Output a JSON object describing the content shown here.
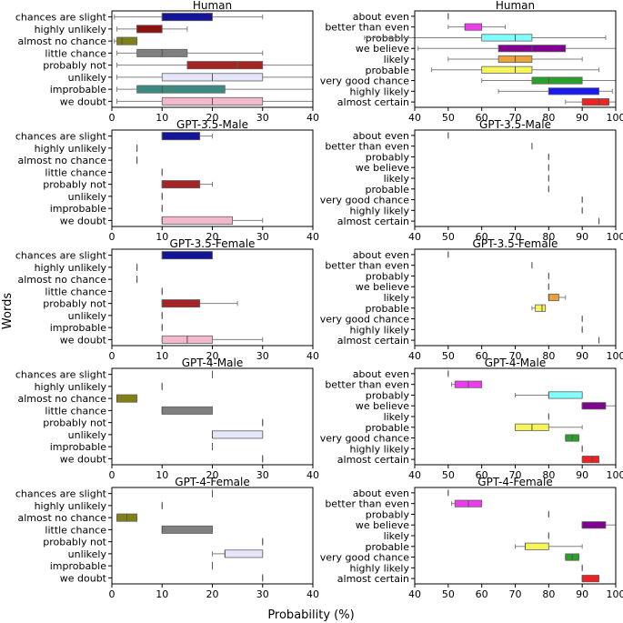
{
  "figure": {
    "ylabel": "Words",
    "xlabel": "Probability (%)"
  },
  "chart_data": [
    {
      "type": "box",
      "title": "Human",
      "xlim": [
        0,
        40
      ],
      "xticks": [
        0,
        10,
        20,
        30,
        40
      ],
      "categories": [
        "chances are slight",
        "highly unlikely",
        "almost no chance",
        "little chance",
        "probably not",
        "unlikely",
        "improbable",
        "we doubt"
      ],
      "boxes": [
        {
          "wmin": 0.5,
          "q1": 10,
          "median": 10,
          "q3": 20,
          "wmax": 30,
          "color": "#14149a"
        },
        {
          "wmin": 1,
          "q1": 5,
          "median": 5,
          "q3": 10,
          "wmax": 15,
          "color": "#8b1111"
        },
        {
          "wmin": 0.5,
          "q1": 1,
          "median": 2,
          "q3": 5,
          "wmax": 5,
          "color": "#808017"
        },
        {
          "wmin": 1,
          "q1": 5,
          "median": 10,
          "q3": 15,
          "wmax": 30,
          "color": "#7f7f7f"
        },
        {
          "wmin": 1,
          "q1": 15,
          "median": 25,
          "q3": 30,
          "wmax": 40,
          "color": "#a52525"
        },
        {
          "wmin": 1,
          "q1": 10,
          "median": 20,
          "q3": 30,
          "wmax": 40,
          "color": "#e6e6fa"
        },
        {
          "wmin": 1,
          "q1": 5,
          "median": 10,
          "q3": 22.5,
          "wmax": 40,
          "color": "#3d8b80"
        },
        {
          "wmin": 1,
          "q1": 10,
          "median": 20,
          "q3": 30,
          "wmax": 40,
          "color": "#f4b8cc"
        }
      ]
    },
    {
      "type": "box",
      "title": "Human",
      "xlim": [
        40,
        100
      ],
      "xticks": [
        40,
        50,
        60,
        70,
        80,
        90,
        100
      ],
      "categories": [
        "about even",
        "better than even",
        "probably",
        "we believe",
        "likely",
        "probable",
        "very good chance",
        "highly likely",
        "almost certain"
      ],
      "boxes": [
        {
          "wmin": 50,
          "q1": 50,
          "median": 50,
          "q3": 50,
          "wmax": 50,
          "color": "#555555"
        },
        {
          "wmin": 50,
          "q1": 55,
          "median": 55,
          "q3": 60,
          "wmax": 67,
          "color": "#ee3bee"
        },
        {
          "wmin": 25,
          "q1": 60,
          "median": 70,
          "q3": 75,
          "wmax": 97,
          "color": "#7fffff"
        },
        {
          "wmin": 41,
          "q1": 65,
          "median": 75,
          "q3": 85,
          "wmax": 100,
          "color": "#800090"
        },
        {
          "wmin": 50,
          "q1": 65,
          "median": 70,
          "q3": 75,
          "wmax": 90,
          "color": "#e8a23c"
        },
        {
          "wmin": 45,
          "q1": 60,
          "median": 70,
          "q3": 75,
          "wmax": 95,
          "color": "#f5f55a"
        },
        {
          "wmin": 60,
          "q1": 75,
          "median": 80,
          "q3": 90,
          "wmax": 100,
          "color": "#2aa02a"
        },
        {
          "wmin": 65,
          "q1": 80,
          "median": 80,
          "q3": 95,
          "wmax": 99,
          "color": "#1818f0"
        },
        {
          "wmin": 85,
          "q1": 90,
          "median": 95,
          "q3": 98,
          "wmax": 100,
          "color": "#ee2222"
        }
      ]
    },
    {
      "type": "box",
      "title": "GPT-3.5-Male",
      "xlim": [
        0,
        40
      ],
      "xticks": [
        0,
        10,
        20,
        30,
        40
      ],
      "categories": [
        "chances are slight",
        "highly unlikely",
        "almost no chance",
        "little chance",
        "probably not",
        "unlikely",
        "improbable",
        "we doubt"
      ],
      "boxes": [
        {
          "wmin": 10,
          "q1": 10,
          "median": 10,
          "q3": 17.5,
          "wmax": 20,
          "color": "#14149a"
        },
        {
          "wmin": 5,
          "q1": 5,
          "median": 5,
          "q3": 5,
          "wmax": 5,
          "color": "#8b1111"
        },
        {
          "wmin": 5,
          "q1": 5,
          "median": 5,
          "q3": 5,
          "wmax": 5,
          "color": "#808017"
        },
        {
          "wmin": 10,
          "q1": 10,
          "median": 10,
          "q3": 10,
          "wmax": 10,
          "color": "#7f7f7f"
        },
        {
          "wmin": 10,
          "q1": 10,
          "median": 10,
          "q3": 17.5,
          "wmax": 20,
          "color": "#a52525"
        },
        {
          "wmin": 10,
          "q1": 10,
          "median": 10,
          "q3": 10,
          "wmax": 10,
          "color": "#e6e6fa"
        },
        {
          "wmin": 10,
          "q1": 10,
          "median": 10,
          "q3": 10,
          "wmax": 10,
          "color": "#3d8b80"
        },
        {
          "wmin": 10,
          "q1": 10,
          "median": 10,
          "q3": 24,
          "wmax": 30,
          "color": "#f4b8cc"
        }
      ]
    },
    {
      "type": "box",
      "title": "GPT-3.5-Male",
      "xlim": [
        40,
        100
      ],
      "xticks": [
        40,
        50,
        60,
        70,
        80,
        90,
        100
      ],
      "categories": [
        "about even",
        "better than even",
        "probably",
        "we believe",
        "likely",
        "probable",
        "very good chance",
        "highly likely",
        "almost certain"
      ],
      "boxes": [
        {
          "wmin": 50,
          "q1": 50,
          "median": 50,
          "q3": 50,
          "wmax": 50,
          "color": "#555555"
        },
        {
          "wmin": 75,
          "q1": 75,
          "median": 75,
          "q3": 75,
          "wmax": 75,
          "color": "#ee3bee"
        },
        {
          "wmin": 80,
          "q1": 80,
          "median": 80,
          "q3": 80,
          "wmax": 80,
          "color": "#7fffff"
        },
        {
          "wmin": 80,
          "q1": 80,
          "median": 80,
          "q3": 80,
          "wmax": 80,
          "color": "#800090"
        },
        {
          "wmin": 80,
          "q1": 80,
          "median": 80,
          "q3": 80,
          "wmax": 80,
          "color": "#e8a23c"
        },
        {
          "wmin": 80,
          "q1": 80,
          "median": 80,
          "q3": 80,
          "wmax": 80,
          "color": "#f5f55a"
        },
        {
          "wmin": 90,
          "q1": 90,
          "median": 90,
          "q3": 90,
          "wmax": 90,
          "color": "#2aa02a"
        },
        {
          "wmin": 90,
          "q1": 90,
          "median": 90,
          "q3": 90,
          "wmax": 90,
          "color": "#1818f0"
        },
        {
          "wmin": 95,
          "q1": 95,
          "median": 95,
          "q3": 95,
          "wmax": 95,
          "color": "#ee2222"
        }
      ]
    },
    {
      "type": "box",
      "title": "GPT-3.5-Female",
      "xlim": [
        0,
        40
      ],
      "xticks": [
        0,
        10,
        20,
        30,
        40
      ],
      "categories": [
        "chances are slight",
        "highly unlikely",
        "almost no chance",
        "little chance",
        "probably not",
        "unlikely",
        "improbable",
        "we doubt"
      ],
      "boxes": [
        {
          "wmin": 10,
          "q1": 10,
          "median": 10,
          "q3": 20,
          "wmax": 20,
          "color": "#14149a"
        },
        {
          "wmin": 5,
          "q1": 5,
          "median": 5,
          "q3": 5,
          "wmax": 5,
          "color": "#8b1111"
        },
        {
          "wmin": 5,
          "q1": 5,
          "median": 5,
          "q3": 5,
          "wmax": 5,
          "color": "#808017"
        },
        {
          "wmin": 10,
          "q1": 10,
          "median": 10,
          "q3": 10,
          "wmax": 10,
          "color": "#7f7f7f"
        },
        {
          "wmin": 10,
          "q1": 10,
          "median": 10,
          "q3": 17.5,
          "wmax": 25,
          "color": "#a52525"
        },
        {
          "wmin": 10,
          "q1": 10,
          "median": 10,
          "q3": 10,
          "wmax": 10,
          "color": "#e6e6fa"
        },
        {
          "wmin": 10,
          "q1": 10,
          "median": 10,
          "q3": 10,
          "wmax": 10,
          "color": "#3d8b80"
        },
        {
          "wmin": 10,
          "q1": 10,
          "median": 15,
          "q3": 20,
          "wmax": 30,
          "color": "#f4b8cc"
        }
      ]
    },
    {
      "type": "box",
      "title": "GPT-3.5-Female",
      "xlim": [
        40,
        100
      ],
      "xticks": [
        40,
        50,
        60,
        70,
        80,
        90,
        100
      ],
      "categories": [
        "about even",
        "better than even",
        "probably",
        "we believe",
        "likely",
        "probable",
        "very good chance",
        "highly likely",
        "almost certain"
      ],
      "boxes": [
        {
          "wmin": 50,
          "q1": 50,
          "median": 50,
          "q3": 50,
          "wmax": 50,
          "color": "#555555"
        },
        {
          "wmin": 75,
          "q1": 75,
          "median": 75,
          "q3": 75,
          "wmax": 75,
          "color": "#ee3bee"
        },
        {
          "wmin": 80,
          "q1": 80,
          "median": 80,
          "q3": 80,
          "wmax": 80,
          "color": "#7fffff"
        },
        {
          "wmin": 80,
          "q1": 80,
          "median": 80,
          "q3": 80,
          "wmax": 80,
          "color": "#800090"
        },
        {
          "wmin": 80,
          "q1": 80,
          "median": 80,
          "q3": 83,
          "wmax": 85,
          "color": "#e8a23c"
        },
        {
          "wmin": 75,
          "q1": 76,
          "median": 78,
          "q3": 79,
          "wmax": 79,
          "color": "#f5f55a"
        },
        {
          "wmin": 90,
          "q1": 90,
          "median": 90,
          "q3": 90,
          "wmax": 90,
          "color": "#2aa02a"
        },
        {
          "wmin": 90,
          "q1": 90,
          "median": 90,
          "q3": 90,
          "wmax": 90,
          "color": "#1818f0"
        },
        {
          "wmin": 95,
          "q1": 95,
          "median": 95,
          "q3": 95,
          "wmax": 95,
          "color": "#ee2222"
        }
      ]
    },
    {
      "type": "box",
      "title": "GPT-4-Male",
      "xlim": [
        0,
        40
      ],
      "xticks": [
        0,
        10,
        20,
        30,
        40
      ],
      "categories": [
        "chances are slight",
        "highly unlikely",
        "almost no chance",
        "little chance",
        "probably not",
        "unlikely",
        "improbable",
        "we doubt"
      ],
      "boxes": [
        {
          "wmin": 20,
          "q1": 20,
          "median": 20,
          "q3": 20,
          "wmax": 20,
          "color": "#14149a"
        },
        {
          "wmin": 10,
          "q1": 10,
          "median": 10,
          "q3": 10,
          "wmax": 10,
          "color": "#8b1111"
        },
        {
          "wmin": 1,
          "q1": 1,
          "median": 1,
          "q3": 5,
          "wmax": 5,
          "color": "#808017"
        },
        {
          "wmin": 10,
          "q1": 10,
          "median": 10,
          "q3": 20,
          "wmax": 20,
          "color": "#7f7f7f"
        },
        {
          "wmin": 30,
          "q1": 30,
          "median": 30,
          "q3": 30,
          "wmax": 30,
          "color": "#a52525"
        },
        {
          "wmin": 20,
          "q1": 20,
          "median": 20,
          "q3": 30,
          "wmax": 30,
          "color": "#e6e6fa"
        },
        {
          "wmin": 20,
          "q1": 20,
          "median": 20,
          "q3": 20,
          "wmax": 20,
          "color": "#3d8b80"
        },
        {
          "wmin": 30,
          "q1": 30,
          "median": 30,
          "q3": 30,
          "wmax": 30,
          "color": "#f4b8cc"
        }
      ]
    },
    {
      "type": "box",
      "title": "GPT-4-Male",
      "xlim": [
        40,
        100
      ],
      "xticks": [
        40,
        50,
        60,
        70,
        80,
        90,
        100
      ],
      "categories": [
        "about even",
        "better than even",
        "probably",
        "we believe",
        "likely",
        "probable",
        "very good chance",
        "highly likely",
        "almost certain"
      ],
      "boxes": [
        {
          "wmin": 50,
          "q1": 50,
          "median": 50,
          "q3": 50,
          "wmax": 50,
          "color": "#555555"
        },
        {
          "wmin": 51,
          "q1": 52,
          "median": 56,
          "q3": 60,
          "wmax": 60,
          "color": "#ee3bee"
        },
        {
          "wmin": 70,
          "q1": 80,
          "median": 80,
          "q3": 90,
          "wmax": 90,
          "color": "#7fffff"
        },
        {
          "wmin": 90,
          "q1": 90,
          "median": 90,
          "q3": 97,
          "wmax": 100,
          "color": "#800090"
        },
        {
          "wmin": 80,
          "q1": 80,
          "median": 80,
          "q3": 80,
          "wmax": 80,
          "color": "#e8a23c"
        },
        {
          "wmin": 70,
          "q1": 70,
          "median": 75,
          "q3": 80,
          "wmax": 90,
          "color": "#f5f55a"
        },
        {
          "wmin": 85,
          "q1": 85,
          "median": 87,
          "q3": 89,
          "wmax": 89,
          "color": "#2aa02a"
        },
        {
          "wmin": 90,
          "q1": 90,
          "median": 90,
          "q3": 90,
          "wmax": 90,
          "color": "#1818f0"
        },
        {
          "wmin": 90,
          "q1": 90,
          "median": 93,
          "q3": 95,
          "wmax": 95,
          "color": "#ee2222"
        }
      ]
    },
    {
      "type": "box",
      "title": "GPT-4-Female",
      "xlim": [
        0,
        40
      ],
      "xticks": [
        0,
        10,
        20,
        30,
        40
      ],
      "categories": [
        "chances are slight",
        "highly unlikely",
        "almost no chance",
        "little chance",
        "probably not",
        "unlikely",
        "improbable",
        "we doubt"
      ],
      "boxes": [
        {
          "wmin": 20,
          "q1": 20,
          "median": 20,
          "q3": 20,
          "wmax": 20,
          "color": "#14149a"
        },
        {
          "wmin": 10,
          "q1": 10,
          "median": 10,
          "q3": 10,
          "wmax": 10,
          "color": "#8b1111"
        },
        {
          "wmin": 1,
          "q1": 1,
          "median": 3,
          "q3": 5,
          "wmax": 5,
          "color": "#808017"
        },
        {
          "wmin": 10,
          "q1": 10,
          "median": 10,
          "q3": 20,
          "wmax": 20,
          "color": "#7f7f7f"
        },
        {
          "wmin": 30,
          "q1": 30,
          "median": 30,
          "q3": 30,
          "wmax": 30,
          "color": "#a52525"
        },
        {
          "wmin": 20,
          "q1": 22.5,
          "median": 22.5,
          "q3": 30,
          "wmax": 30,
          "color": "#e6e6fa"
        },
        {
          "wmin": 20,
          "q1": 20,
          "median": 20,
          "q3": 20,
          "wmax": 20,
          "color": "#3d8b80"
        },
        {
          "wmin": 30,
          "q1": 30,
          "median": 30,
          "q3": 30,
          "wmax": 30,
          "color": "#f4b8cc"
        }
      ]
    },
    {
      "type": "box",
      "title": "GPT-4-Female",
      "xlim": [
        40,
        100
      ],
      "xticks": [
        40,
        50,
        60,
        70,
        80,
        90,
        100
      ],
      "categories": [
        "about even",
        "better than even",
        "probably",
        "we believe",
        "likely",
        "probable",
        "very good chance",
        "highly likely",
        "almost certain"
      ],
      "boxes": [
        {
          "wmin": 50,
          "q1": 50,
          "median": 50,
          "q3": 50,
          "wmax": 50,
          "color": "#555555"
        },
        {
          "wmin": 51,
          "q1": 52,
          "median": 56,
          "q3": 60,
          "wmax": 60,
          "color": "#ee3bee"
        },
        {
          "wmin": 80,
          "q1": 80,
          "median": 80,
          "q3": 80,
          "wmax": 80,
          "color": "#7fffff"
        },
        {
          "wmin": 90,
          "q1": 90,
          "median": 90,
          "q3": 97,
          "wmax": 100,
          "color": "#800090"
        },
        {
          "wmin": 80,
          "q1": 80,
          "median": 80,
          "q3": 80,
          "wmax": 80,
          "color": "#e8a23c"
        },
        {
          "wmin": 70,
          "q1": 73,
          "median": 73,
          "q3": 80,
          "wmax": 90,
          "color": "#f5f55a"
        },
        {
          "wmin": 85,
          "q1": 85,
          "median": 87,
          "q3": 89,
          "wmax": 89,
          "color": "#2aa02a"
        },
        {
          "wmin": 90,
          "q1": 90,
          "median": 90,
          "q3": 90,
          "wmax": 90,
          "color": "#1818f0"
        },
        {
          "wmin": 90,
          "q1": 90,
          "median": 90,
          "q3": 95,
          "wmax": 95,
          "color": "#ee2222"
        }
      ]
    }
  ]
}
